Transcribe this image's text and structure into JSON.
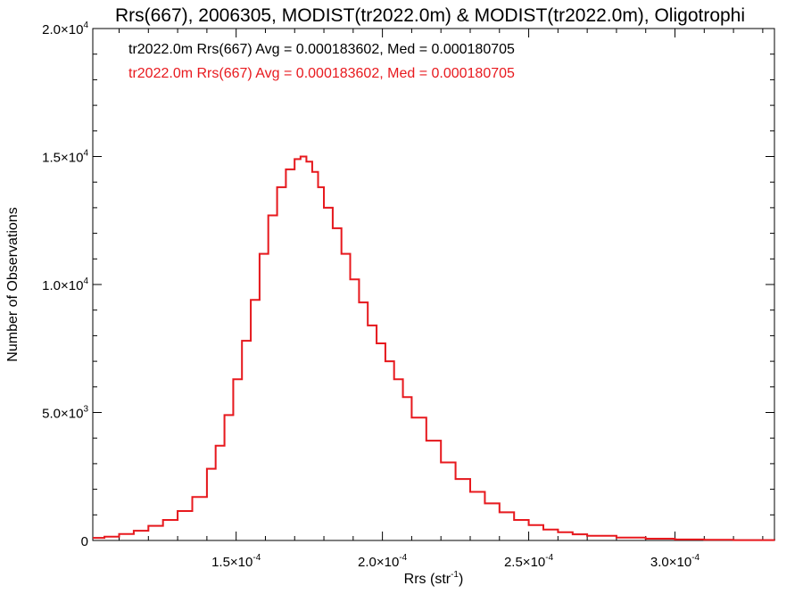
{
  "chart_data": {
    "type": "line",
    "title": "Rrs(667), 2006305, MODIST(tr2022.0m) & MODIST(tr2022.0m), Oligotrophi",
    "xlabel": "Rrs (str",
    "xlabel_sup": "-1",
    "xlabel_close": ")",
    "ylabel": "Number of Observations",
    "xlim": [
      0.000101,
      0.000334
    ],
    "ylim": [
      0,
      20000
    ],
    "x_ticks": [
      {
        "value": 0.00015,
        "mantissa": "1.5",
        "exp": "-4"
      },
      {
        "value": 0.0002,
        "mantissa": "2.0",
        "exp": "-4"
      },
      {
        "value": 0.00025,
        "mantissa": "2.5",
        "exp": "-4"
      },
      {
        "value": 0.0003,
        "mantissa": "3.0",
        "exp": "-4"
      }
    ],
    "y_ticks": [
      {
        "value": 0,
        "mantissa": "0",
        "exp": ""
      },
      {
        "value": 5000,
        "mantissa": "5.0",
        "exp": "3"
      },
      {
        "value": 10000,
        "mantissa": "1.0",
        "exp": "4"
      },
      {
        "value": 15000,
        "mantissa": "1.5",
        "exp": "4"
      },
      {
        "value": 20000,
        "mantissa": "2.0",
        "exp": "4"
      }
    ],
    "grid": false,
    "legend_position": "top-left",
    "series": [
      {
        "name": "tr2022.0m Rrs(667) Avg = 0.000183602, Med = 0.000180705",
        "color": "#000000",
        "x": [
          0.000101,
          0.000105,
          0.00011,
          0.000115,
          0.00012,
          0.000125,
          0.00013,
          0.000135,
          0.00014,
          0.000143,
          0.000146,
          0.000149,
          0.000152,
          0.000155,
          0.000158,
          0.000161,
          0.000164,
          0.000167,
          0.00017,
          0.000172,
          0.000174,
          0.000176,
          0.000178,
          0.00018,
          0.000183,
          0.000186,
          0.000189,
          0.000192,
          0.000195,
          0.000198,
          0.000201,
          0.000204,
          0.000207,
          0.00021,
          0.000215,
          0.00022,
          0.000225,
          0.00023,
          0.000235,
          0.00024,
          0.000245,
          0.00025,
          0.000255,
          0.00026,
          0.000265,
          0.00027,
          0.00028,
          0.00029,
          0.0003,
          0.00031,
          0.00032,
          0.000334
        ],
        "values": [
          100,
          150,
          250,
          380,
          570,
          800,
          1150,
          1700,
          2800,
          3700,
          4900,
          6300,
          7800,
          9400,
          11200,
          12700,
          13800,
          14500,
          14900,
          15000,
          14800,
          14400,
          13800,
          13000,
          12200,
          11200,
          10200,
          9300,
          8400,
          7700,
          7000,
          6300,
          5600,
          4800,
          3900,
          3050,
          2400,
          1900,
          1450,
          1100,
          800,
          600,
          430,
          320,
          240,
          180,
          110,
          70,
          40,
          25,
          15,
          8
        ]
      },
      {
        "name": "tr2022.0m Rrs(667) Avg = 0.000183602, Med = 0.000180705",
        "color": "#e8191e",
        "x": [
          0.000101,
          0.000105,
          0.00011,
          0.000115,
          0.00012,
          0.000125,
          0.00013,
          0.000135,
          0.00014,
          0.000143,
          0.000146,
          0.000149,
          0.000152,
          0.000155,
          0.000158,
          0.000161,
          0.000164,
          0.000167,
          0.00017,
          0.000172,
          0.000174,
          0.000176,
          0.000178,
          0.00018,
          0.000183,
          0.000186,
          0.000189,
          0.000192,
          0.000195,
          0.000198,
          0.000201,
          0.000204,
          0.000207,
          0.00021,
          0.000215,
          0.00022,
          0.000225,
          0.00023,
          0.000235,
          0.00024,
          0.000245,
          0.00025,
          0.000255,
          0.00026,
          0.000265,
          0.00027,
          0.00028,
          0.00029,
          0.0003,
          0.00031,
          0.00032,
          0.000334
        ],
        "values": [
          100,
          150,
          250,
          380,
          570,
          800,
          1150,
          1700,
          2800,
          3700,
          4900,
          6300,
          7800,
          9400,
          11200,
          12700,
          13800,
          14500,
          14900,
          15000,
          14800,
          14400,
          13800,
          13000,
          12200,
          11200,
          10200,
          9300,
          8400,
          7700,
          7000,
          6300,
          5600,
          4800,
          3900,
          3050,
          2400,
          1900,
          1450,
          1100,
          800,
          600,
          430,
          320,
          240,
          180,
          110,
          70,
          40,
          25,
          15,
          8
        ]
      }
    ]
  }
}
